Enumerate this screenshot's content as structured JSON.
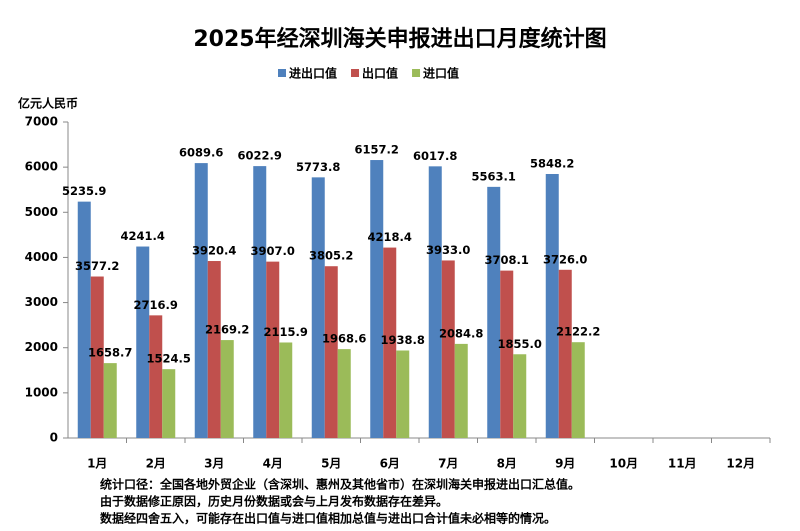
{
  "chart_data": {
    "type": "bar",
    "title": "2025年经深圳海关申报进出口月度统计图",
    "y_axis_label": "亿元人民币",
    "categories": [
      "1月",
      "2月",
      "3月",
      "4月",
      "5月",
      "6月",
      "7月",
      "8月",
      "9月",
      "10月",
      "11月",
      "12月"
    ],
    "series": [
      {
        "name": "进出口值",
        "color": "#4f81bd",
        "values": [
          5235.9,
          4241.4,
          6089.6,
          6022.9,
          5773.8,
          6157.2,
          6017.8,
          5563.1,
          5848.2,
          null,
          null,
          null
        ],
        "value_labels": [
          "5235.9",
          "4241.4",
          "6089.6",
          "6022.9",
          "5773.8",
          "6157.2",
          "6017.8",
          "5563.1",
          "5848.2",
          null,
          null,
          null
        ]
      },
      {
        "name": "出口值",
        "color": "#c0504d",
        "values": [
          3577.2,
          2716.9,
          3920.4,
          3907.0,
          3805.2,
          4218.4,
          3933.0,
          3708.1,
          3726.0,
          null,
          null,
          null
        ],
        "value_labels": [
          "3577.2",
          "2716.9",
          "3920.4",
          "3907.0",
          "3805.2",
          "4218.4",
          "3933.0",
          "3708.1",
          "3726.0",
          null,
          null,
          null
        ]
      },
      {
        "name": "进口值",
        "color": "#9bbb59",
        "values": [
          1658.7,
          1524.5,
          2169.2,
          2115.9,
          1968.6,
          1938.8,
          2084.8,
          1855.0,
          2122.2,
          null,
          null,
          null
        ],
        "value_labels": [
          "1658.7",
          "1524.5",
          "2169.2",
          "2115.9",
          "1968.6",
          "1938.8",
          "2084.8",
          "1855.0",
          "2122.2",
          null,
          null,
          null
        ]
      }
    ],
    "ylim": [
      0,
      7000
    ],
    "yticks": [
      0,
      1000,
      2000,
      3000,
      4000,
      5000,
      6000,
      7000
    ],
    "legend": "top",
    "notes": [
      "统计口径：全国各地外贸企业（含深圳、惠州及其他省市）在深圳海关申报进出口汇总值。",
      "由于数据修正原因，历史月份数据或会与上月发布数据存在差异。",
      "数据经四舍五入，可能存在出口值与进口值相加总值与进出口合计值未必相等的情况。"
    ]
  }
}
